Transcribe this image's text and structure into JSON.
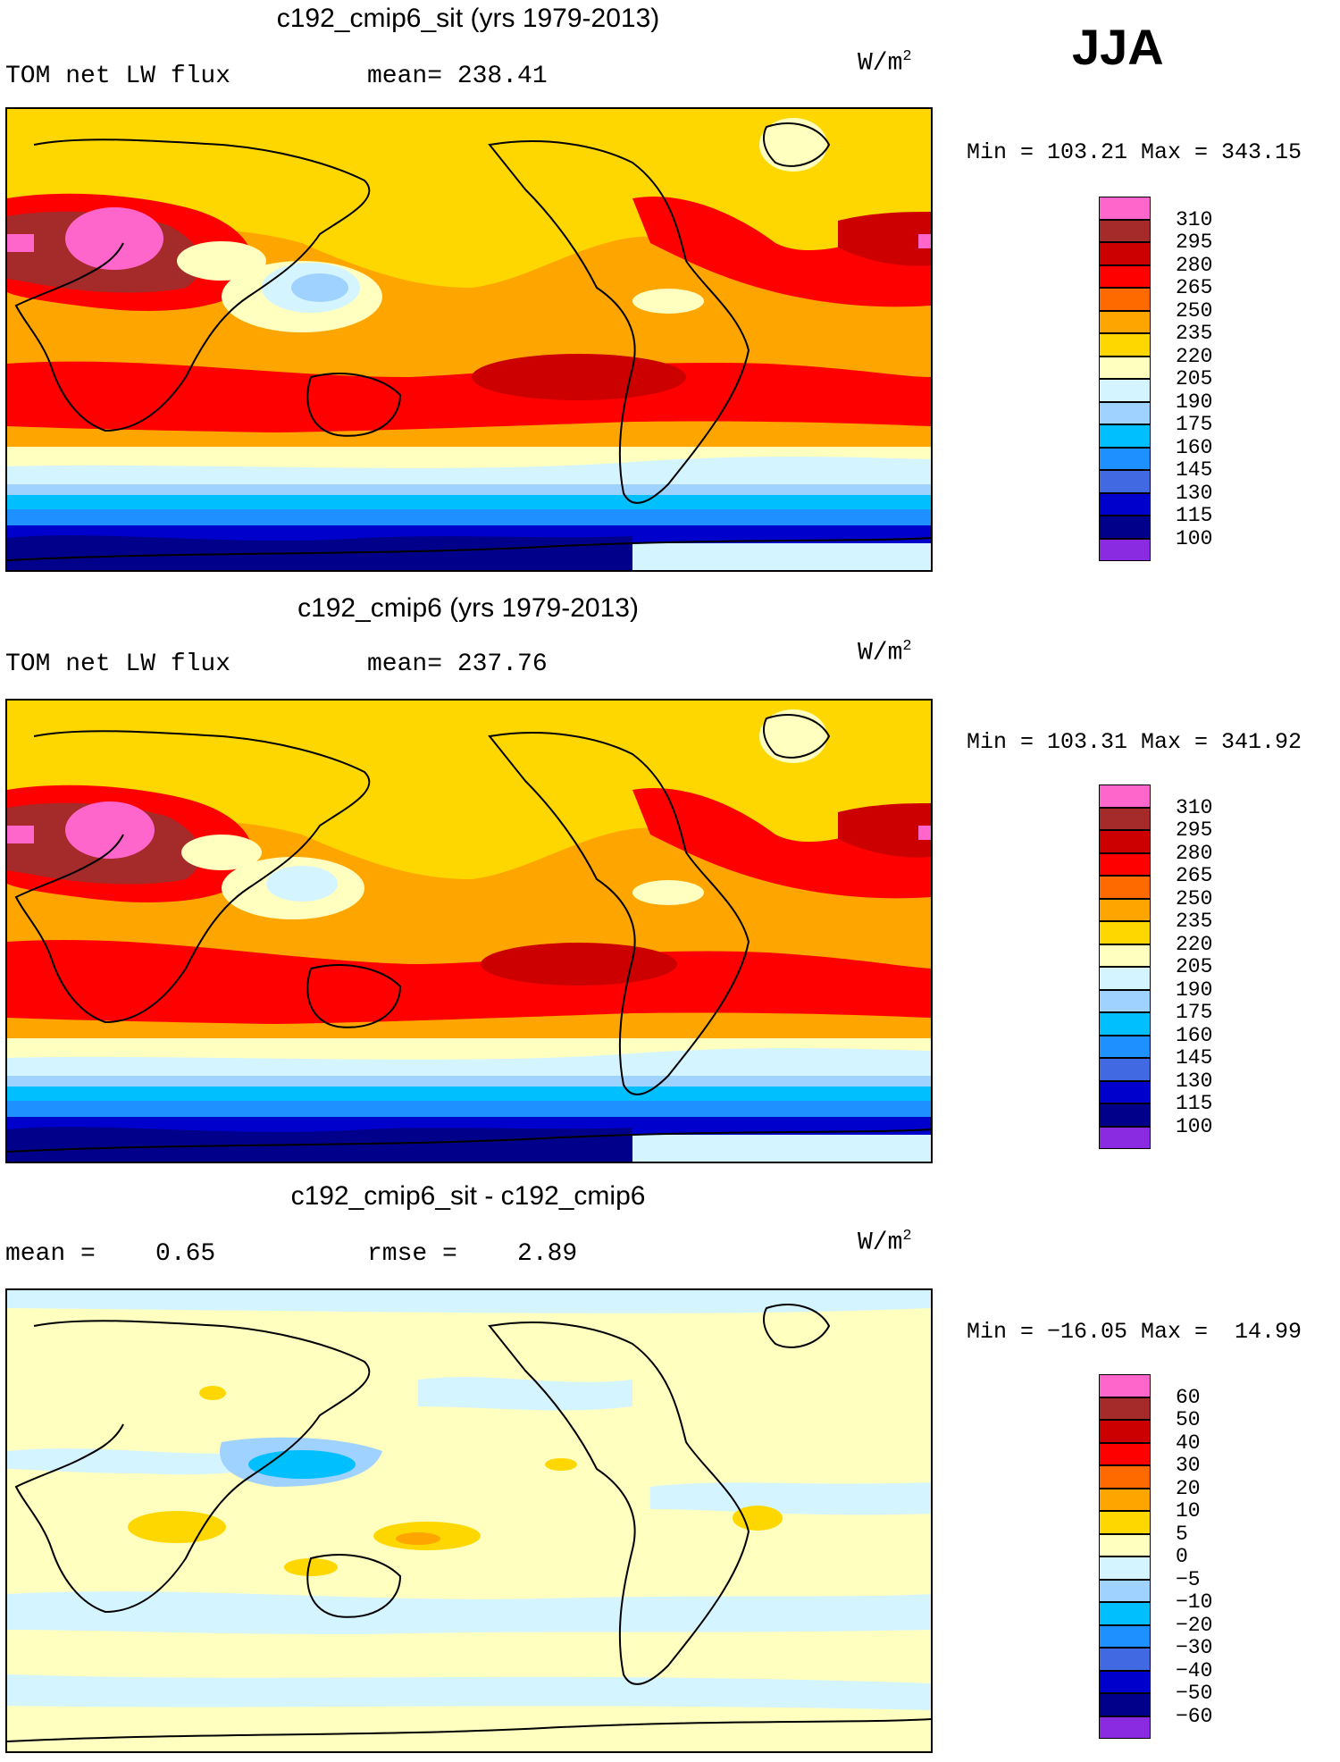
{
  "season": "JJA",
  "unit_base": "W/m",
  "unit_exp": "2",
  "panels": [
    {
      "id": "p1",
      "title": "c192_cmip6_sit (yrs 1979-2013)",
      "left_text": "TOM net LW flux",
      "mid_text": "mean= 238.41",
      "minmax_text": "Min = 103.21 Max = 343.15",
      "colorbar": "abs"
    },
    {
      "id": "p2",
      "title": "c192_cmip6 (yrs 1979-2013)",
      "left_text": "TOM net LW flux",
      "mid_text": "mean= 237.76",
      "minmax_text": "Min = 103.31 Max = 341.92",
      "colorbar": "abs"
    },
    {
      "id": "p3",
      "title": "c192_cmip6_sit - c192_cmip6",
      "left_text": "mean =    0.65",
      "mid_text": "rmse =    2.89",
      "minmax_text": "Min = −16.05 Max =  14.99",
      "colorbar": "diff"
    }
  ],
  "colorbars": {
    "abs": {
      "colors": [
        "#ff66cc",
        "#a52a2a",
        "#cd0000",
        "#ff0000",
        "#ff6a00",
        "#ffa500",
        "#ffd700",
        "#ffffc0",
        "#d4f5ff",
        "#a0d2ff",
        "#00bfff",
        "#1e90ff",
        "#4169e1",
        "#0000cd",
        "#00008b",
        "#8a2be2"
      ],
      "labels": [
        "310",
        "295",
        "280",
        "265",
        "250",
        "235",
        "220",
        "205",
        "190",
        "175",
        "160",
        "145",
        "130",
        "115",
        "100"
      ]
    },
    "diff": {
      "colors": [
        "#ff66cc",
        "#a52a2a",
        "#cd0000",
        "#ff0000",
        "#ff6a00",
        "#ffa500",
        "#ffd700",
        "#ffffc0",
        "#d4f5ff",
        "#a0d2ff",
        "#00bfff",
        "#1e90ff",
        "#4169e1",
        "#0000cd",
        "#00008b",
        "#8a2be2"
      ],
      "labels": [
        "60",
        "50",
        "40",
        "30",
        "20",
        "10",
        "5",
        "0",
        "−5",
        "−10",
        "−20",
        "−30",
        "−40",
        "−50",
        "−60"
      ]
    }
  },
  "map_colors": {
    "ocean_abs_base": "#ffd700",
    "diff_base": "#ffffc0",
    "coast": "#000000"
  }
}
